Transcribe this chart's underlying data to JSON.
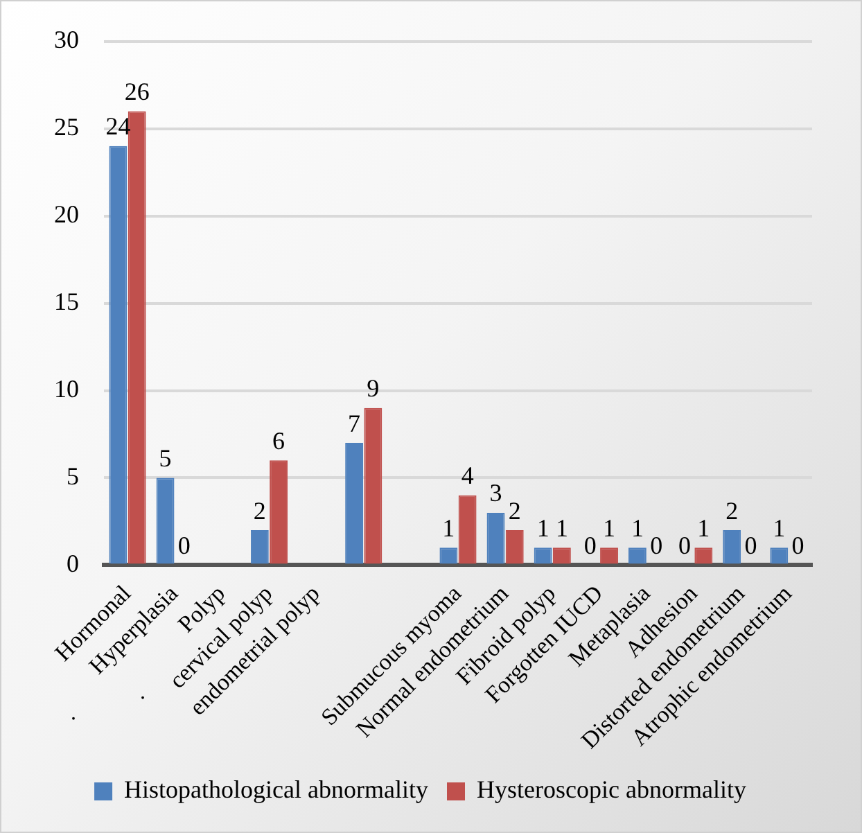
{
  "chart_data": {
    "type": "bar",
    "categories": [
      "Hormonal",
      "Hyperplasia",
      "Polyp",
      "cervical polyp",
      "endometrial polyp",
      null,
      null,
      "Submucous myoma",
      "Normal endometrium",
      "Fibroid polyp",
      "Forgotten IUCD",
      "Metaplasia",
      "Adhesion",
      "Distorted endometrium",
      "Atrophic endometrium"
    ],
    "series": [
      {
        "name": "Histopathological abnormality",
        "color": "#4f81bd",
        "values": [
          24,
          5,
          null,
          2,
          null,
          7,
          null,
          1,
          3,
          1,
          0,
          1,
          0,
          2,
          1
        ]
      },
      {
        "name": "Hysteroscopic abnormality",
        "color": "#c0504d",
        "values": [
          26,
          0,
          null,
          6,
          null,
          9,
          null,
          4,
          2,
          1,
          1,
          0,
          1,
          0,
          0
        ]
      }
    ],
    "ylim": [
      0,
      30
    ],
    "yticks": [
      0,
      5,
      10,
      15,
      20,
      25,
      30
    ],
    "grid": "y",
    "legend": "bottom",
    "data_labels": true,
    "annotations": [
      ".",
      "."
    ]
  }
}
